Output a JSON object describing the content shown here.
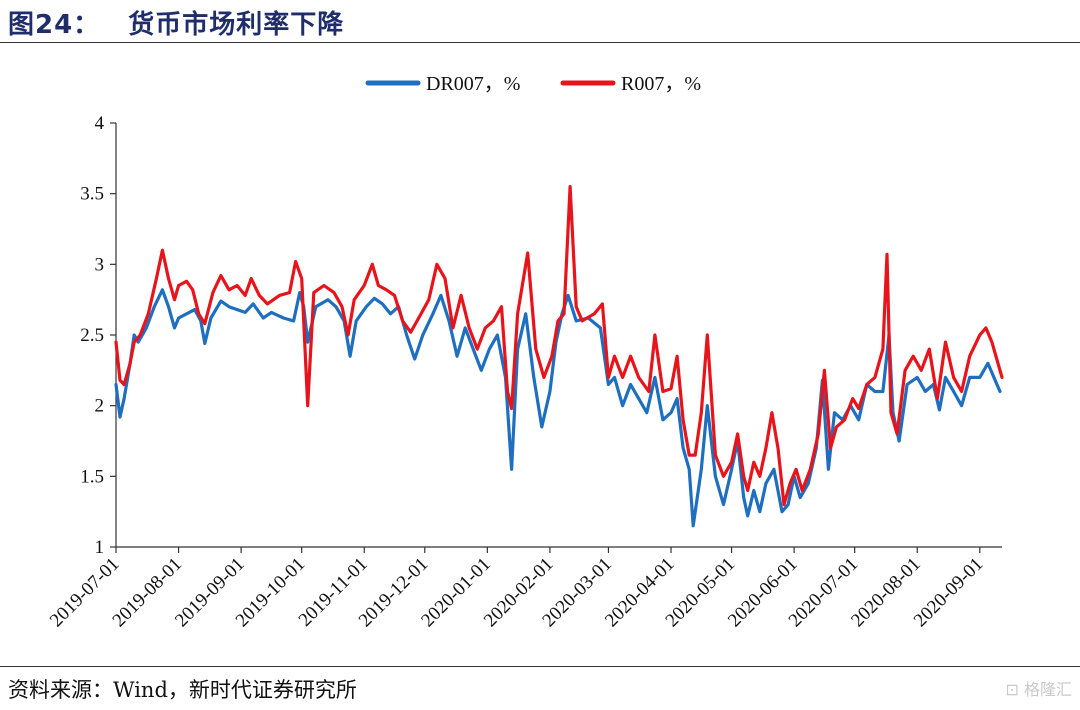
{
  "header": {
    "figure_number": "图24：",
    "title": "货币市场利率下降"
  },
  "footer": {
    "source": "资料来源：Wind，新时代证券研究所",
    "watermark": "⊡ 格隆汇"
  },
  "chart_data": {
    "type": "line",
    "ylim": [
      1,
      4
    ],
    "yticks": [
      "1",
      "1.5",
      "2",
      "2.5",
      "3",
      "3.5",
      "4"
    ],
    "xticks": [
      "2019-07-01",
      "2019-08-01",
      "2019-09-01",
      "2019-10-01",
      "2019-11-01",
      "2019-12-01",
      "2020-01-01",
      "2020-02-01",
      "2020-03-01",
      "2020-04-01",
      "2020-05-01",
      "2020-06-01",
      "2020-07-01",
      "2020-08-01",
      "2020-09-01"
    ],
    "xrange": [
      "2019-07-01",
      "2020-09-12"
    ],
    "legend_position": "top-center",
    "series": [
      {
        "name": "DR007，%",
        "color": "#1f6fc0",
        "points": [
          [
            "2019-07-01",
            2.15
          ],
          [
            "2019-07-03",
            1.92
          ],
          [
            "2019-07-05",
            2.05
          ],
          [
            "2019-07-08",
            2.3
          ],
          [
            "2019-07-10",
            2.5
          ],
          [
            "2019-07-12",
            2.45
          ],
          [
            "2019-07-16",
            2.55
          ],
          [
            "2019-07-20",
            2.7
          ],
          [
            "2019-07-24",
            2.82
          ],
          [
            "2019-07-27",
            2.7
          ],
          [
            "2019-07-30",
            2.55
          ],
          [
            "2019-08-01",
            2.62
          ],
          [
            "2019-08-05",
            2.65
          ],
          [
            "2019-08-09",
            2.68
          ],
          [
            "2019-08-12",
            2.6
          ],
          [
            "2019-08-14",
            2.44
          ],
          [
            "2019-08-17",
            2.62
          ],
          [
            "2019-08-22",
            2.74
          ],
          [
            "2019-08-26",
            2.7
          ],
          [
            "2019-08-30",
            2.68
          ],
          [
            "2019-09-03",
            2.66
          ],
          [
            "2019-09-07",
            2.72
          ],
          [
            "2019-09-12",
            2.62
          ],
          [
            "2019-09-16",
            2.66
          ],
          [
            "2019-09-22",
            2.62
          ],
          [
            "2019-09-27",
            2.6
          ],
          [
            "2019-09-30",
            2.8
          ],
          [
            "2019-10-02",
            2.7
          ],
          [
            "2019-10-04",
            2.45
          ],
          [
            "2019-10-08",
            2.7
          ],
          [
            "2019-10-14",
            2.75
          ],
          [
            "2019-10-18",
            2.7
          ],
          [
            "2019-10-22",
            2.6
          ],
          [
            "2019-10-25",
            2.35
          ],
          [
            "2019-10-28",
            2.6
          ],
          [
            "2019-11-02",
            2.7
          ],
          [
            "2019-11-06",
            2.76
          ],
          [
            "2019-11-10",
            2.72
          ],
          [
            "2019-11-14",
            2.65
          ],
          [
            "2019-11-18",
            2.7
          ],
          [
            "2019-11-22",
            2.5
          ],
          [
            "2019-11-26",
            2.33
          ],
          [
            "2019-11-30",
            2.5
          ],
          [
            "2019-12-05",
            2.65
          ],
          [
            "2019-12-09",
            2.78
          ],
          [
            "2019-12-13",
            2.6
          ],
          [
            "2019-12-17",
            2.35
          ],
          [
            "2019-12-21",
            2.55
          ],
          [
            "2019-12-25",
            2.4
          ],
          [
            "2019-12-29",
            2.25
          ],
          [
            "2020-01-02",
            2.4
          ],
          [
            "2020-01-06",
            2.5
          ],
          [
            "2020-01-10",
            2.2
          ],
          [
            "2020-01-13",
            1.55
          ],
          [
            "2020-01-16",
            2.4
          ],
          [
            "2020-01-20",
            2.65
          ],
          [
            "2020-01-24",
            2.2
          ],
          [
            "2020-01-28",
            1.85
          ],
          [
            "2020-02-01",
            2.1
          ],
          [
            "2020-02-04",
            2.45
          ],
          [
            "2020-02-07",
            2.65
          ],
          [
            "2020-02-10",
            2.78
          ],
          [
            "2020-02-14",
            2.6
          ],
          [
            "2020-02-20",
            2.62
          ],
          [
            "2020-02-26",
            2.55
          ],
          [
            "2020-03-01",
            2.15
          ],
          [
            "2020-03-04",
            2.2
          ],
          [
            "2020-03-08",
            2.0
          ],
          [
            "2020-03-12",
            2.15
          ],
          [
            "2020-03-16",
            2.05
          ],
          [
            "2020-03-20",
            1.95
          ],
          [
            "2020-03-24",
            2.2
          ],
          [
            "2020-03-28",
            1.9
          ],
          [
            "2020-04-01",
            1.95
          ],
          [
            "2020-04-04",
            2.05
          ],
          [
            "2020-04-07",
            1.7
          ],
          [
            "2020-04-10",
            1.55
          ],
          [
            "2020-04-12",
            1.15
          ],
          [
            "2020-04-16",
            1.55
          ],
          [
            "2020-04-19",
            2.0
          ],
          [
            "2020-04-23",
            1.5
          ],
          [
            "2020-04-27",
            1.3
          ],
          [
            "2020-05-01",
            1.55
          ],
          [
            "2020-05-04",
            1.75
          ],
          [
            "2020-05-07",
            1.35
          ],
          [
            "2020-05-09",
            1.22
          ],
          [
            "2020-05-12",
            1.4
          ],
          [
            "2020-05-15",
            1.25
          ],
          [
            "2020-05-18",
            1.45
          ],
          [
            "2020-05-22",
            1.55
          ],
          [
            "2020-05-26",
            1.25
          ],
          [
            "2020-05-29",
            1.3
          ],
          [
            "2020-06-01",
            1.5
          ],
          [
            "2020-06-04",
            1.35
          ],
          [
            "2020-06-08",
            1.45
          ],
          [
            "2020-06-12",
            1.7
          ],
          [
            "2020-06-15",
            2.18
          ],
          [
            "2020-06-18",
            1.55
          ],
          [
            "2020-06-21",
            1.95
          ],
          [
            "2020-06-25",
            1.9
          ],
          [
            "2020-06-29",
            2.0
          ],
          [
            "2020-07-03",
            1.9
          ],
          [
            "2020-07-07",
            2.15
          ],
          [
            "2020-07-11",
            2.1
          ],
          [
            "2020-07-15",
            2.1
          ],
          [
            "2020-07-18",
            2.5
          ],
          [
            "2020-07-20",
            1.95
          ],
          [
            "2020-07-23",
            1.75
          ],
          [
            "2020-07-27",
            2.15
          ],
          [
            "2020-08-01",
            2.2
          ],
          [
            "2020-08-05",
            2.1
          ],
          [
            "2020-08-09",
            2.15
          ],
          [
            "2020-08-12",
            1.97
          ],
          [
            "2020-08-15",
            2.2
          ],
          [
            "2020-08-19",
            2.1
          ],
          [
            "2020-08-23",
            2.0
          ],
          [
            "2020-08-27",
            2.2
          ],
          [
            "2020-09-01",
            2.2
          ],
          [
            "2020-09-05",
            2.3
          ],
          [
            "2020-09-08",
            2.2
          ],
          [
            "2020-09-11",
            2.1
          ]
        ]
      },
      {
        "name": "R007，%",
        "color": "#e8141b",
        "points": [
          [
            "2019-07-01",
            2.45
          ],
          [
            "2019-07-03",
            2.18
          ],
          [
            "2019-07-05",
            2.15
          ],
          [
            "2019-07-08",
            2.3
          ],
          [
            "2019-07-10",
            2.45
          ],
          [
            "2019-07-13",
            2.5
          ],
          [
            "2019-07-17",
            2.65
          ],
          [
            "2019-07-21",
            2.9
          ],
          [
            "2019-07-24",
            3.1
          ],
          [
            "2019-07-27",
            2.9
          ],
          [
            "2019-07-30",
            2.75
          ],
          [
            "2019-08-01",
            2.85
          ],
          [
            "2019-08-05",
            2.88
          ],
          [
            "2019-08-08",
            2.82
          ],
          [
            "2019-08-11",
            2.65
          ],
          [
            "2019-08-14",
            2.58
          ],
          [
            "2019-08-18",
            2.8
          ],
          [
            "2019-08-22",
            2.92
          ],
          [
            "2019-08-26",
            2.82
          ],
          [
            "2019-08-30",
            2.85
          ],
          [
            "2019-09-03",
            2.78
          ],
          [
            "2019-09-06",
            2.9
          ],
          [
            "2019-09-10",
            2.78
          ],
          [
            "2019-09-14",
            2.72
          ],
          [
            "2019-09-20",
            2.78
          ],
          [
            "2019-09-25",
            2.8
          ],
          [
            "2019-09-28",
            3.02
          ],
          [
            "2019-10-01",
            2.9
          ],
          [
            "2019-10-04",
            2.0
          ],
          [
            "2019-10-07",
            2.8
          ],
          [
            "2019-10-12",
            2.85
          ],
          [
            "2019-10-17",
            2.8
          ],
          [
            "2019-10-21",
            2.7
          ],
          [
            "2019-10-24",
            2.5
          ],
          [
            "2019-10-27",
            2.75
          ],
          [
            "2019-11-01",
            2.85
          ],
          [
            "2019-11-05",
            3.0
          ],
          [
            "2019-11-08",
            2.85
          ],
          [
            "2019-11-12",
            2.82
          ],
          [
            "2019-11-16",
            2.78
          ],
          [
            "2019-11-20",
            2.6
          ],
          [
            "2019-11-24",
            2.52
          ],
          [
            "2019-11-28",
            2.62
          ],
          [
            "2019-12-03",
            2.75
          ],
          [
            "2019-12-07",
            3.0
          ],
          [
            "2019-12-11",
            2.9
          ],
          [
            "2019-12-15",
            2.55
          ],
          [
            "2019-12-19",
            2.78
          ],
          [
            "2019-12-23",
            2.55
          ],
          [
            "2019-12-27",
            2.4
          ],
          [
            "2019-12-31",
            2.55
          ],
          [
            "2020-01-04",
            2.6
          ],
          [
            "2020-01-08",
            2.7
          ],
          [
            "2020-01-11",
            2.1
          ],
          [
            "2020-01-13",
            1.98
          ],
          [
            "2020-01-16",
            2.65
          ],
          [
            "2020-01-21",
            3.08
          ],
          [
            "2020-01-25",
            2.4
          ],
          [
            "2020-01-29",
            2.2
          ],
          [
            "2020-02-02",
            2.35
          ],
          [
            "2020-02-05",
            2.6
          ],
          [
            "2020-02-08",
            2.65
          ],
          [
            "2020-02-11",
            3.55
          ],
          [
            "2020-02-14",
            2.7
          ],
          [
            "2020-02-17",
            2.6
          ],
          [
            "2020-02-23",
            2.65
          ],
          [
            "2020-02-27",
            2.72
          ],
          [
            "2020-03-01",
            2.2
          ],
          [
            "2020-03-04",
            2.35
          ],
          [
            "2020-03-08",
            2.2
          ],
          [
            "2020-03-12",
            2.35
          ],
          [
            "2020-03-16",
            2.2
          ],
          [
            "2020-03-21",
            2.1
          ],
          [
            "2020-03-24",
            2.5
          ],
          [
            "2020-03-28",
            2.1
          ],
          [
            "2020-04-01",
            2.12
          ],
          [
            "2020-04-04",
            2.35
          ],
          [
            "2020-04-07",
            1.9
          ],
          [
            "2020-04-10",
            1.65
          ],
          [
            "2020-04-13",
            1.65
          ],
          [
            "2020-04-16",
            1.95
          ],
          [
            "2020-04-19",
            2.5
          ],
          [
            "2020-04-23",
            1.65
          ],
          [
            "2020-04-27",
            1.5
          ],
          [
            "2020-05-01",
            1.6
          ],
          [
            "2020-05-04",
            1.8
          ],
          [
            "2020-05-07",
            1.5
          ],
          [
            "2020-05-09",
            1.4
          ],
          [
            "2020-05-12",
            1.6
          ],
          [
            "2020-05-15",
            1.5
          ],
          [
            "2020-05-18",
            1.7
          ],
          [
            "2020-05-21",
            1.95
          ],
          [
            "2020-05-24",
            1.7
          ],
          [
            "2020-05-27",
            1.3
          ],
          [
            "2020-05-30",
            1.45
          ],
          [
            "2020-06-02",
            1.55
          ],
          [
            "2020-06-05",
            1.4
          ],
          [
            "2020-06-09",
            1.55
          ],
          [
            "2020-06-13",
            1.8
          ],
          [
            "2020-06-16",
            2.25
          ],
          [
            "2020-06-19",
            1.7
          ],
          [
            "2020-06-22",
            1.85
          ],
          [
            "2020-06-26",
            1.9
          ],
          [
            "2020-06-30",
            2.05
          ],
          [
            "2020-07-03",
            1.98
          ],
          [
            "2020-07-07",
            2.15
          ],
          [
            "2020-07-11",
            2.2
          ],
          [
            "2020-07-15",
            2.4
          ],
          [
            "2020-07-17",
            3.07
          ],
          [
            "2020-07-19",
            1.95
          ],
          [
            "2020-07-22",
            1.8
          ],
          [
            "2020-07-26",
            2.25
          ],
          [
            "2020-07-30",
            2.35
          ],
          [
            "2020-08-03",
            2.25
          ],
          [
            "2020-08-07",
            2.4
          ],
          [
            "2020-08-11",
            2.05
          ],
          [
            "2020-08-15",
            2.45
          ],
          [
            "2020-08-19",
            2.2
          ],
          [
            "2020-08-23",
            2.1
          ],
          [
            "2020-08-27",
            2.35
          ],
          [
            "2020-09-01",
            2.5
          ],
          [
            "2020-09-04",
            2.55
          ],
          [
            "2020-09-07",
            2.45
          ],
          [
            "2020-09-10",
            2.3
          ],
          [
            "2020-09-12",
            2.2
          ]
        ]
      }
    ]
  }
}
